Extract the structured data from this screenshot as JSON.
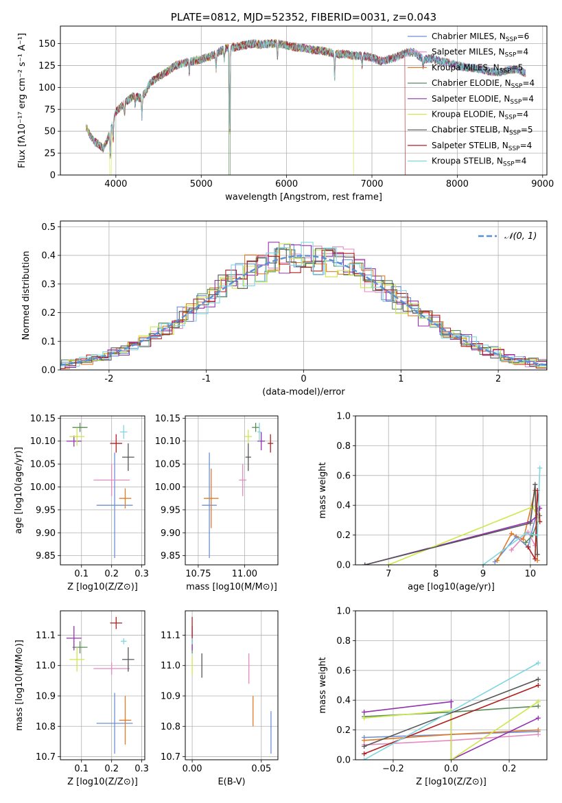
{
  "colors": {
    "c_miles_chab": "#6b8fd6",
    "c_miles_salp": "#e58ac0",
    "c_miles_krou": "#e07b2a",
    "c_elod_chab": "#5a8a5a",
    "c_elod_salp": "#9330b0",
    "c_elod_krou": "#cde84a",
    "c_stel_chab": "#555555",
    "c_stel_salp": "#b21e1e",
    "c_stel_krou": "#7fd6e0",
    "gauss": "#5b8ed8"
  },
  "chart_data": [
    {
      "id": "spectrum",
      "type": "line",
      "title": "PLATE=0812, MJD=52352, FIBERID=0031, z=0.043",
      "xlabel": "wavelength [Angstrom, rest frame]",
      "ylabel": "Flux [fλ10⁻¹⁷ erg cm⁻² s⁻¹ A⁻¹]",
      "xlim": [
        3350,
        9050
      ],
      "ylim": [
        0,
        170
      ],
      "xticks": [
        4000,
        5000,
        6000,
        7000,
        8000,
        9000
      ],
      "yticks": [
        0,
        25,
        50,
        75,
        100,
        125,
        150
      ],
      "legend_position": "top-right",
      "legend": [
        {
          "label": "Chabrier MILES, N",
          "sub": "SSP",
          "val": "=6",
          "color": "c_miles_chab"
        },
        {
          "label": "Salpeter MILES, N",
          "sub": "SSP",
          "val": "=4",
          "color": "c_miles_salp"
        },
        {
          "label": "Kroupa MILES, N",
          "sub": "SSP",
          "val": "=5",
          "color": "c_miles_krou"
        },
        {
          "label": "Chabrier ELODIE, N",
          "sub": "SSP",
          "val": "=4",
          "color": "c_elod_chab"
        },
        {
          "label": "Salpeter ELODIE, N",
          "sub": "SSP",
          "val": "=4",
          "color": "c_elod_salp"
        },
        {
          "label": "Kroupa ELODIE, N",
          "sub": "SSP",
          "val": "=4",
          "color": "c_elod_krou"
        },
        {
          "label": "Chabrier STELIB, N",
          "sub": "SSP",
          "val": "=5",
          "color": "c_stel_chab"
        },
        {
          "label": "Salpeter STELIB, N",
          "sub": "SSP",
          "val": "=4",
          "color": "c_stel_salp"
        },
        {
          "label": "Kroupa STELIB, N",
          "sub": "SSP",
          "val": "=4",
          "color": "c_stel_krou"
        }
      ],
      "continuum": [
        [
          3650,
          55
        ],
        [
          3700,
          45
        ],
        [
          3750,
          38
        ],
        [
          3800,
          35
        ],
        [
          3850,
          30
        ],
        [
          3900,
          40
        ],
        [
          3950,
          55
        ],
        [
          4000,
          72
        ],
        [
          4100,
          82
        ],
        [
          4200,
          90
        ],
        [
          4300,
          88
        ],
        [
          4350,
          95
        ],
        [
          4400,
          105
        ],
        [
          4500,
          112
        ],
        [
          4600,
          118
        ],
        [
          4700,
          125
        ],
        [
          4800,
          128
        ],
        [
          4900,
          130
        ],
        [
          5000,
          132
        ],
        [
          5100,
          135
        ],
        [
          5200,
          140
        ],
        [
          5300,
          145
        ],
        [
          5400,
          146
        ],
        [
          5500,
          148
        ],
        [
          5600,
          150
        ],
        [
          5700,
          149
        ],
        [
          5800,
          150
        ],
        [
          5900,
          150
        ],
        [
          6000,
          148
        ],
        [
          6100,
          146
        ],
        [
          6200,
          145
        ],
        [
          6300,
          143
        ],
        [
          6400,
          142
        ],
        [
          6500,
          140
        ],
        [
          6600,
          138
        ],
        [
          6700,
          138
        ],
        [
          6800,
          136
        ],
        [
          6900,
          136
        ],
        [
          7000,
          134
        ],
        [
          7100,
          130
        ],
        [
          7200,
          132
        ],
        [
          7300,
          135
        ],
        [
          7400,
          140
        ],
        [
          7500,
          140
        ],
        [
          7600,
          132
        ],
        [
          7700,
          133
        ],
        [
          7800,
          130
        ],
        [
          7900,
          128
        ],
        [
          8000,
          125
        ],
        [
          8100,
          123
        ],
        [
          8200,
          122
        ],
        [
          8300,
          120
        ],
        [
          8400,
          118
        ],
        [
          8500,
          117
        ],
        [
          8600,
          120
        ],
        [
          8700,
          121
        ],
        [
          8800,
          116
        ]
      ]
    },
    {
      "id": "residuals",
      "type": "line",
      "xlabel": "(data-model)/error",
      "ylabel": "Normed distribution",
      "xlim": [
        -2.5,
        2.5
      ],
      "ylim": [
        0,
        0.52
      ],
      "xticks": [
        -2,
        -1,
        0,
        1,
        2
      ],
      "yticks": [
        0.0,
        0.1,
        0.2,
        0.3,
        0.4,
        0.5
      ],
      "legend_position": "top-right",
      "gauss_label": "𝒩(0, 1)",
      "hist_color_order": [
        "c_miles_chab",
        "c_miles_salp",
        "c_miles_krou",
        "c_elod_chab",
        "c_elod_salp",
        "c_elod_krou",
        "c_stel_chab",
        "c_stel_salp",
        "c_stel_krou"
      ]
    },
    {
      "id": "age_vs_Z",
      "type": "scatter",
      "xlabel": "Z [log10(Z/Z⊙)]",
      "ylabel": "age [log10(age/yr)]",
      "xlim": [
        0.03,
        0.31
      ],
      "ylim": [
        9.83,
        10.155
      ],
      "xticks": [
        0.1,
        0.2,
        0.3
      ],
      "yticks": [
        9.85,
        9.9,
        9.95,
        10.0,
        10.05,
        10.1,
        10.15
      ],
      "points": [
        {
          "x": 0.21,
          "y": 9.96,
          "xe": 0.06,
          "ye": 0.115,
          "color": "c_miles_chab"
        },
        {
          "x": 0.2,
          "y": 10.015,
          "xe": 0.06,
          "ye": 0.035,
          "color": "c_miles_salp"
        },
        {
          "x": 0.245,
          "y": 9.975,
          "xe": 0.02,
          "ye": 0.022,
          "color": "c_miles_krou"
        },
        {
          "x": 0.095,
          "y": 10.13,
          "xe": 0.025,
          "ye": 0.01,
          "color": "c_elod_chab"
        },
        {
          "x": 0.075,
          "y": 10.1,
          "xe": 0.025,
          "ye": 0.012,
          "color": "c_elod_salp"
        },
        {
          "x": 0.085,
          "y": 10.11,
          "xe": 0.025,
          "ye": 0.02,
          "color": "c_elod_krou"
        },
        {
          "x": 0.255,
          "y": 10.065,
          "xe": 0.02,
          "ye": 0.03,
          "color": "c_stel_chab"
        },
        {
          "x": 0.215,
          "y": 10.095,
          "xe": 0.02,
          "ye": 0.02,
          "color": "c_stel_salp"
        },
        {
          "x": 0.24,
          "y": 10.12,
          "xe": 0.012,
          "ye": 0.015,
          "color": "c_stel_krou"
        }
      ]
    },
    {
      "id": "age_vs_mass",
      "type": "scatter",
      "xlabel": "mass [log10(M/M⊙)]",
      "ylabel": "",
      "xlim": [
        10.68,
        11.18
      ],
      "ylim": [
        9.83,
        10.155
      ],
      "xticks": [
        10.75,
        11.0
      ],
      "xticklabels": [
        "10.75",
        "11.00"
      ],
      "yticks": [
        9.85,
        9.9,
        9.95,
        10.0,
        10.05,
        10.1,
        10.15
      ],
      "points": [
        {
          "x": 10.81,
          "y": 9.96,
          "xe": 0.04,
          "ye": 0.115,
          "color": "c_miles_chab"
        },
        {
          "x": 10.99,
          "y": 10.015,
          "xe": 0.02,
          "ye": 0.035,
          "color": "c_miles_salp"
        },
        {
          "x": 10.82,
          "y": 9.975,
          "xe": 0.04,
          "ye": 0.065,
          "color": "c_miles_krou"
        },
        {
          "x": 11.06,
          "y": 10.13,
          "xe": 0.02,
          "ye": 0.01,
          "color": "c_elod_chab"
        },
        {
          "x": 11.09,
          "y": 10.1,
          "xe": 0.02,
          "ye": 0.02,
          "color": "c_elod_salp"
        },
        {
          "x": 11.02,
          "y": 10.11,
          "xe": 0.02,
          "ye": 0.015,
          "color": "c_elod_krou"
        },
        {
          "x": 11.02,
          "y": 10.065,
          "xe": 0.015,
          "ye": 0.03,
          "color": "c_stel_chab"
        },
        {
          "x": 11.14,
          "y": 10.095,
          "xe": 0.015,
          "ye": 0.02,
          "color": "c_stel_salp"
        },
        {
          "x": 11.08,
          "y": 10.12,
          "xe": 0.01,
          "ye": 0.02,
          "color": "c_stel_krou"
        }
      ]
    },
    {
      "id": "mass_vs_Z",
      "type": "scatter",
      "xlabel": "Z [log10(Z/Z⊙)]",
      "ylabel": "mass [log10(M/M⊙)]",
      "xlim": [
        0.03,
        0.31
      ],
      "ylim": [
        10.69,
        11.18
      ],
      "xticks": [
        0.1,
        0.2,
        0.3
      ],
      "yticks": [
        10.7,
        10.8,
        10.9,
        11.0,
        11.1
      ],
      "points": [
        {
          "x": 0.21,
          "y": 10.81,
          "xe": 0.06,
          "ye": 0.1,
          "color": "c_miles_chab"
        },
        {
          "x": 0.2,
          "y": 10.99,
          "xe": 0.06,
          "ye": 0.02,
          "color": "c_miles_salp"
        },
        {
          "x": 0.245,
          "y": 10.82,
          "xe": 0.02,
          "ye": 0.08,
          "color": "c_miles_krou"
        },
        {
          "x": 0.095,
          "y": 11.06,
          "xe": 0.025,
          "ye": 0.02,
          "color": "c_elod_chab"
        },
        {
          "x": 0.075,
          "y": 11.09,
          "xe": 0.025,
          "ye": 0.04,
          "color": "c_elod_salp"
        },
        {
          "x": 0.085,
          "y": 11.02,
          "xe": 0.025,
          "ye": 0.04,
          "color": "c_elod_krou"
        },
        {
          "x": 0.255,
          "y": 11.02,
          "xe": 0.02,
          "ye": 0.04,
          "color": "c_stel_chab"
        },
        {
          "x": 0.215,
          "y": 11.14,
          "xe": 0.02,
          "ye": 0.02,
          "color": "c_stel_salp"
        },
        {
          "x": 0.24,
          "y": 11.08,
          "xe": 0.01,
          "ye": 0.01,
          "color": "c_stel_krou"
        }
      ]
    },
    {
      "id": "mass_vs_ebv",
      "type": "scatter",
      "xlabel": "E(B-V)",
      "ylabel": "",
      "xlim": [
        -0.005,
        0.062
      ],
      "ylim": [
        10.69,
        11.18
      ],
      "xticks": [
        0.0,
        0.05
      ],
      "xticklabels": [
        "0.00",
        "0.05"
      ],
      "yticks": [
        10.7,
        10.8,
        10.9,
        11.0,
        11.1
      ],
      "points": [
        {
          "x": 0.057,
          "y": 10.78,
          "xe": 0,
          "ye": 0.07,
          "color": "c_miles_chab"
        },
        {
          "x": 0.041,
          "y": 10.99,
          "xe": 0,
          "ye": 0.05,
          "color": "c_miles_salp"
        },
        {
          "x": 0.044,
          "y": 10.85,
          "xe": 0,
          "ye": 0.05,
          "color": "c_miles_krou"
        },
        {
          "x": 0.0,
          "y": 11.06,
          "xe": 0,
          "ye": 0.02,
          "color": "c_elod_chab"
        },
        {
          "x": 0.0,
          "y": 11.09,
          "xe": 0,
          "ye": 0.04,
          "color": "c_elod_salp"
        },
        {
          "x": 0.0,
          "y": 11.0,
          "xe": 0,
          "ye": 0.03,
          "color": "c_elod_krou"
        },
        {
          "x": 0.007,
          "y": 11.0,
          "xe": 0,
          "ye": 0.04,
          "color": "c_stel_chab"
        },
        {
          "x": 0.0,
          "y": 11.12,
          "xe": 0,
          "ye": 0.04,
          "color": "c_stel_salp"
        },
        {
          "x": 0.0,
          "y": 11.08,
          "xe": 0,
          "ye": 0.01,
          "color": "c_stel_krou"
        }
      ]
    },
    {
      "id": "weight_vs_age",
      "type": "line",
      "xlabel": "age [log10(age/yr)]",
      "ylabel": "mass weight",
      "xlim": [
        6.3,
        10.35
      ],
      "ylim": [
        0,
        1.0
      ],
      "xticks": [
        7,
        8,
        9,
        10
      ],
      "yticks": [
        0.0,
        0.2,
        0.4,
        0.6,
        0.8,
        1.0
      ],
      "series": [
        {
          "color": "c_miles_chab",
          "x": [
            9.25,
            9.7,
            9.95,
            10.15
          ],
          "y": [
            0.02,
            0.19,
            0.12,
            0.37
          ]
        },
        {
          "color": "c_miles_salp",
          "x": [
            9.6,
            9.95,
            10.1
          ],
          "y": [
            0.1,
            0.22,
            0.13
          ]
        },
        {
          "color": "c_miles_krou",
          "x": [
            9.3,
            9.6,
            9.85,
            10.1,
            10.15
          ],
          "y": [
            0.03,
            0.21,
            0.17,
            0.5,
            0.03
          ]
        },
        {
          "color": "c_elod_chab",
          "x": [
            9.9,
            10.05,
            10.2
          ],
          "y": [
            0.15,
            0.2,
            0.33
          ]
        },
        {
          "color": "c_elod_salp",
          "x": [
            6.5,
            10.0,
            10.15,
            10.2
          ],
          "y": [
            0.0,
            0.29,
            0.33,
            0.38
          ]
        },
        {
          "color": "c_elod_krou",
          "x": [
            7.0,
            10.05,
            10.2
          ],
          "y": [
            0.0,
            0.39,
            0.29
          ]
        },
        {
          "color": "c_stel_chab",
          "x": [
            6.5,
            10.0,
            10.1,
            10.15
          ],
          "y": [
            0.0,
            0.28,
            0.54,
            0.07
          ]
        },
        {
          "color": "c_stel_salp",
          "x": [
            9.95,
            10.1,
            10.15,
            10.2
          ],
          "y": [
            0.12,
            0.04,
            0.5,
            0.29
          ]
        },
        {
          "color": "c_stel_krou",
          "x": [
            9.0,
            9.9,
            10.15,
            10.2
          ],
          "y": [
            0.0,
            0.21,
            0.2,
            0.65
          ]
        }
      ]
    },
    {
      "id": "weight_vs_Z",
      "type": "line",
      "xlabel": "Z [log10(Z/Z⊙)]",
      "ylabel": "mass weight",
      "xlim": [
        -0.33,
        0.33
      ],
      "ylim": [
        0,
        1.0
      ],
      "xticks": [
        -0.2,
        0.0,
        0.2
      ],
      "xticklabels": [
        "−0.2",
        "0.0",
        "0.2"
      ],
      "yticks": [
        0.0,
        0.2,
        0.4,
        0.6,
        0.8,
        1.0
      ],
      "series": [
        {
          "color": "c_miles_chab",
          "x": [
            -0.3,
            0.0,
            0.3
          ],
          "y": [
            0.15,
            0.17,
            0.19
          ]
        },
        {
          "color": "c_miles_salp",
          "x": [
            -0.3,
            0.0,
            0.3
          ],
          "y": [
            0.1,
            0.13,
            0.17
          ]
        },
        {
          "color": "c_miles_krou",
          "x": [
            -0.3,
            0.0,
            0.3
          ],
          "y": [
            0.13,
            0.17,
            0.2
          ]
        },
        {
          "color": "c_elod_chab",
          "x": [
            -0.3,
            0.0,
            0.3
          ],
          "y": [
            0.29,
            0.32,
            0.36
          ]
        },
        {
          "color": "c_elod_salp",
          "x": [
            -0.3,
            0.0,
            0.0,
            0.3
          ],
          "y": [
            0.32,
            0.39,
            0.0,
            0.28
          ]
        },
        {
          "color": "c_elod_krou",
          "x": [
            -0.3,
            0.0,
            0.0,
            0.3
          ],
          "y": [
            0.28,
            0.33,
            0.0,
            0.39
          ]
        },
        {
          "color": "c_stel_chab",
          "x": [
            -0.3,
            0.3
          ],
          "y": [
            0.09,
            0.54
          ]
        },
        {
          "color": "c_stel_salp",
          "x": [
            -0.3,
            0.3
          ],
          "y": [
            0.04,
            0.5
          ]
        },
        {
          "color": "c_stel_krou",
          "x": [
            -0.3,
            0.3
          ],
          "y": [
            0.0,
            0.65
          ]
        }
      ]
    }
  ]
}
